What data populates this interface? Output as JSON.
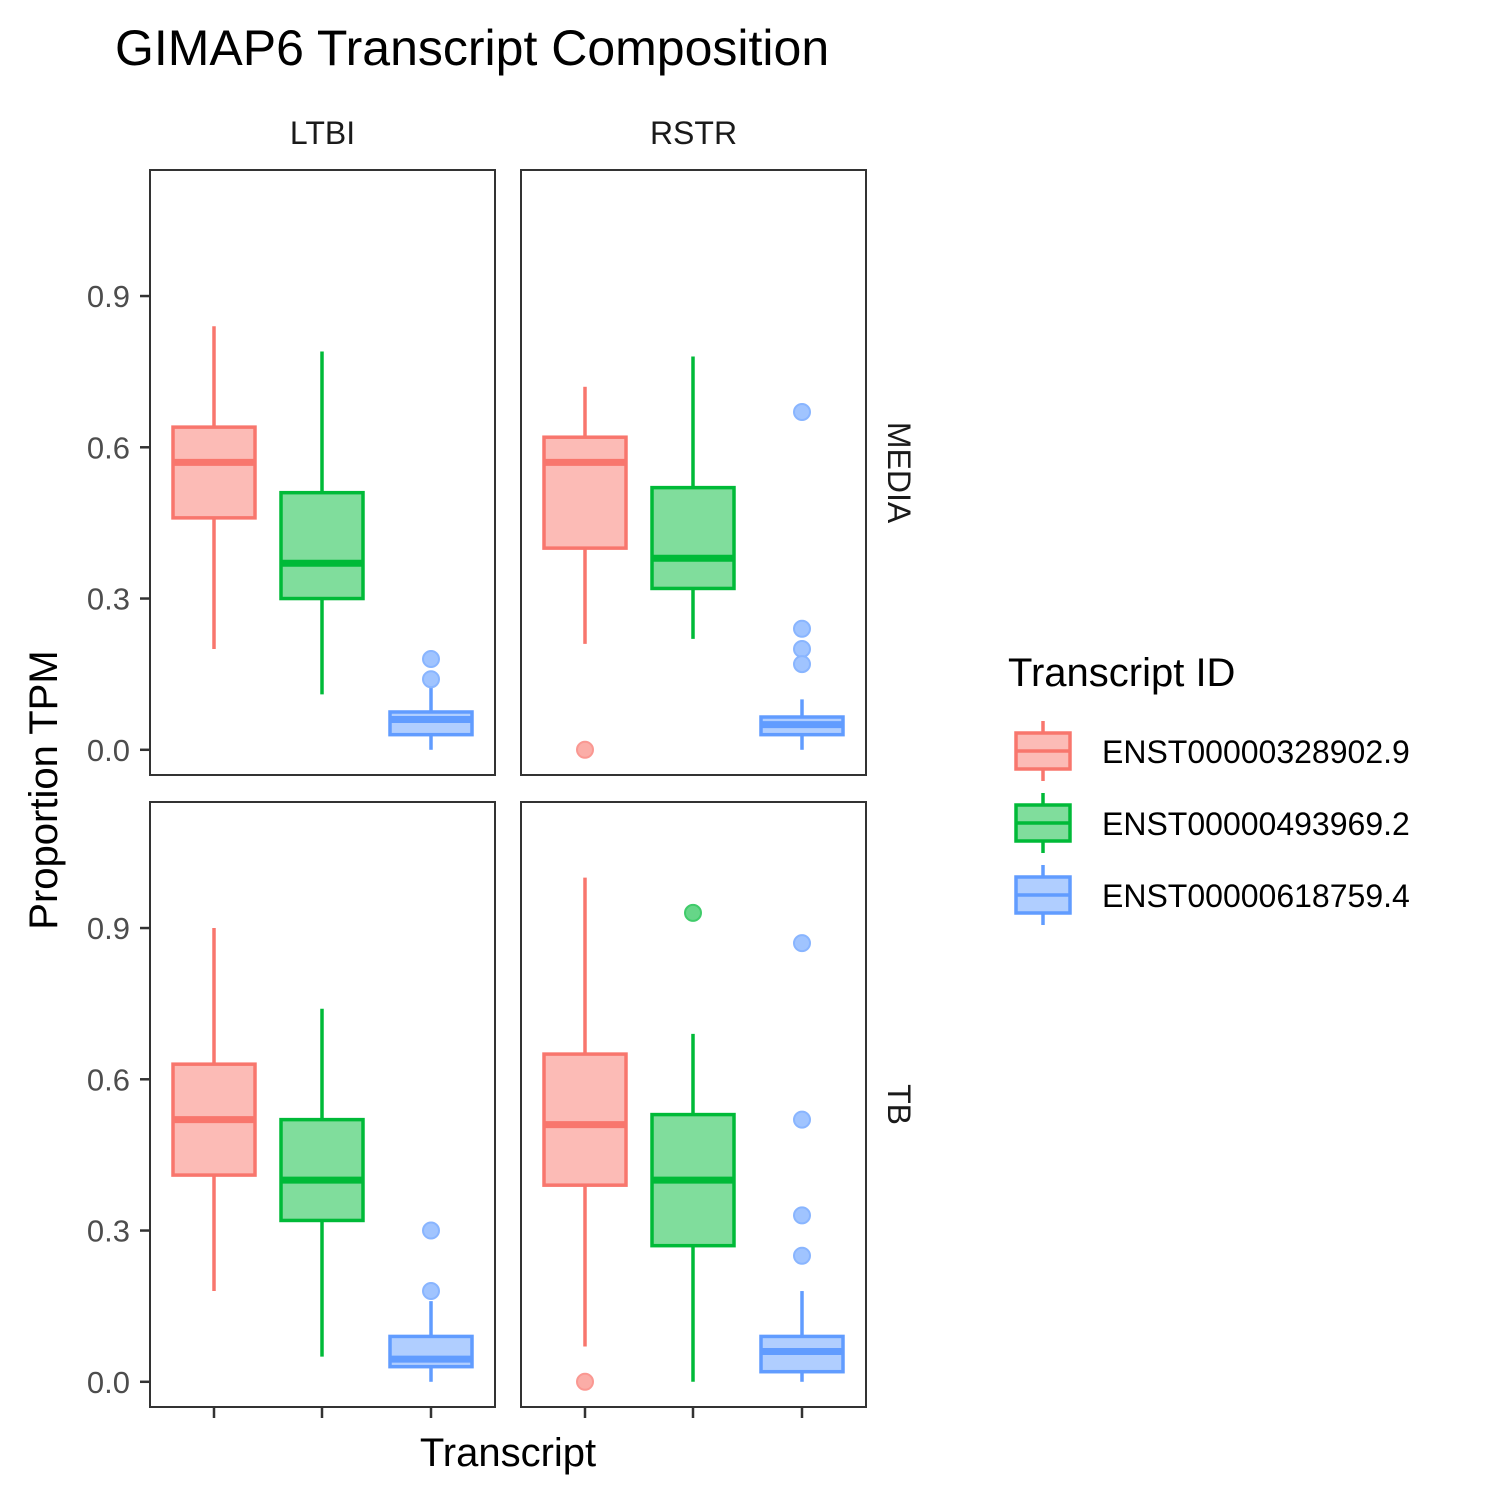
{
  "chart_data": {
    "type": "box",
    "title": "GIMAP6 Transcript Composition",
    "xlabel": "Transcript",
    "ylabel": "Proportion TPM",
    "ylim": [
      -0.05,
      1.15
    ],
    "yticks": [
      0.0,
      0.3,
      0.6,
      0.9
    ],
    "ytick_labels": [
      "0.0",
      "0.3",
      "0.6",
      "0.9"
    ],
    "legend": {
      "title": "Transcript ID",
      "position": "right",
      "entries": [
        "ENST00000328902.9",
        "ENST00000493969.2",
        "ENST00000618759.4"
      ]
    },
    "colors": {
      "ENST00000328902.9": "#F8766D",
      "ENST00000493969.2": "#00BA38",
      "ENST00000618759.4": "#619CFF"
    },
    "col_labels": [
      "LTBI",
      "RSTR"
    ],
    "row_labels": [
      "MEDIA",
      "TB"
    ],
    "panels": [
      {
        "col": "LTBI",
        "row": "MEDIA",
        "boxes": [
          {
            "series": "ENST00000328902.9",
            "whisker_low": 0.2,
            "q1": 0.46,
            "median": 0.57,
            "q3": 0.64,
            "whisker_high": 0.84,
            "outliers": []
          },
          {
            "series": "ENST00000493969.2",
            "whisker_low": 0.11,
            "q1": 0.3,
            "median": 0.37,
            "q3": 0.51,
            "whisker_high": 0.79,
            "outliers": []
          },
          {
            "series": "ENST00000618759.4",
            "whisker_low": 0.0,
            "q1": 0.03,
            "median": 0.06,
            "q3": 0.075,
            "whisker_high": 0.13,
            "outliers": [
              0.18,
              0.14
            ]
          }
        ]
      },
      {
        "col": "RSTR",
        "row": "MEDIA",
        "boxes": [
          {
            "series": "ENST00000328902.9",
            "whisker_low": 0.21,
            "q1": 0.4,
            "median": 0.57,
            "q3": 0.62,
            "whisker_high": 0.72,
            "outliers": [
              0.0
            ]
          },
          {
            "series": "ENST00000493969.2",
            "whisker_low": 0.22,
            "q1": 0.32,
            "median": 0.38,
            "q3": 0.52,
            "whisker_high": 0.78,
            "outliers": []
          },
          {
            "series": "ENST00000618759.4",
            "whisker_low": 0.0,
            "q1": 0.03,
            "median": 0.05,
            "q3": 0.065,
            "whisker_high": 0.1,
            "outliers": [
              0.67,
              0.24,
              0.2,
              0.17
            ]
          }
        ]
      },
      {
        "col": "LTBI",
        "row": "TB",
        "boxes": [
          {
            "series": "ENST00000328902.9",
            "whisker_low": 0.18,
            "q1": 0.41,
            "median": 0.52,
            "q3": 0.63,
            "whisker_high": 0.9,
            "outliers": []
          },
          {
            "series": "ENST00000493969.2",
            "whisker_low": 0.05,
            "q1": 0.32,
            "median": 0.4,
            "q3": 0.52,
            "whisker_high": 0.74,
            "outliers": []
          },
          {
            "series": "ENST00000618759.4",
            "whisker_low": 0.0,
            "q1": 0.03,
            "median": 0.045,
            "q3": 0.09,
            "whisker_high": 0.16,
            "outliers": [
              0.3,
              0.18
            ]
          }
        ]
      },
      {
        "col": "RSTR",
        "row": "TB",
        "boxes": [
          {
            "series": "ENST00000328902.9",
            "whisker_low": 0.07,
            "q1": 0.39,
            "median": 0.51,
            "q3": 0.65,
            "whisker_high": 1.0,
            "outliers": [
              0.0
            ]
          },
          {
            "series": "ENST00000493969.2",
            "whisker_low": 0.0,
            "q1": 0.27,
            "median": 0.4,
            "q3": 0.53,
            "whisker_high": 0.69,
            "outliers": [
              0.93
            ]
          },
          {
            "series": "ENST00000618759.4",
            "whisker_low": 0.0,
            "q1": 0.02,
            "median": 0.06,
            "q3": 0.09,
            "whisker_high": 0.18,
            "outliers": [
              0.87,
              0.52,
              0.33,
              0.25
            ]
          }
        ]
      }
    ]
  }
}
